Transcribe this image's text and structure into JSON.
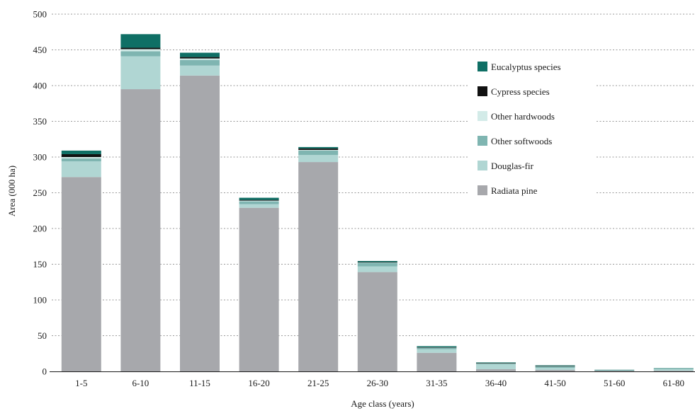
{
  "chart_data": {
    "type": "bar",
    "stacked": true,
    "title": "",
    "xlabel": "Age class (years)",
    "ylabel": "Area (000 ha)",
    "ylim": [
      0,
      500
    ],
    "yticks": [
      0,
      50,
      100,
      150,
      200,
      250,
      300,
      350,
      400,
      450,
      500
    ],
    "grid": true,
    "legend_position": "right",
    "categories": [
      "1-5",
      "6-10",
      "11-15",
      "16-20",
      "21-25",
      "26-30",
      "31-35",
      "36-40",
      "41-50",
      "51-60",
      "61-80"
    ],
    "series": [
      {
        "name": "Radiata pine",
        "color": "#a7a8ac",
        "values": [
          272,
          395,
          414,
          229,
          293,
          139,
          26,
          3,
          2,
          1,
          1
        ]
      },
      {
        "name": "Douglas-fir",
        "color": "#b0d6d3",
        "values": [
          22,
          46,
          14,
          5,
          10,
          8,
          5,
          7,
          3,
          0.5,
          2
        ]
      },
      {
        "name": "Other softwoods",
        "color": "#7fb5b1",
        "values": [
          4,
          7,
          8,
          4,
          6,
          5,
          2,
          1,
          2,
          0.3,
          1
        ]
      },
      {
        "name": "Other hardwoods",
        "color": "#d3ebe8",
        "values": [
          2,
          3,
          2,
          1,
          1,
          0.5,
          0.5,
          0.5,
          0.5,
          0.2,
          0.2
        ]
      },
      {
        "name": "Cypress species",
        "color": "#111111",
        "values": [
          4,
          2,
          2,
          1,
          2,
          0.5,
          0.3,
          0.2,
          0.2,
          0,
          0
        ]
      },
      {
        "name": "Eucalyptus species",
        "color": "#0f6f65",
        "values": [
          5,
          19,
          6,
          3,
          2,
          1.5,
          1.5,
          0.8,
          0.8,
          0.2,
          0.2
        ]
      }
    ],
    "legend_order": [
      "Eucalyptus species",
      "Cypress species",
      "Other hardwoods",
      "Other softwoods",
      "Douglas-fir",
      "Radiata pine"
    ]
  }
}
